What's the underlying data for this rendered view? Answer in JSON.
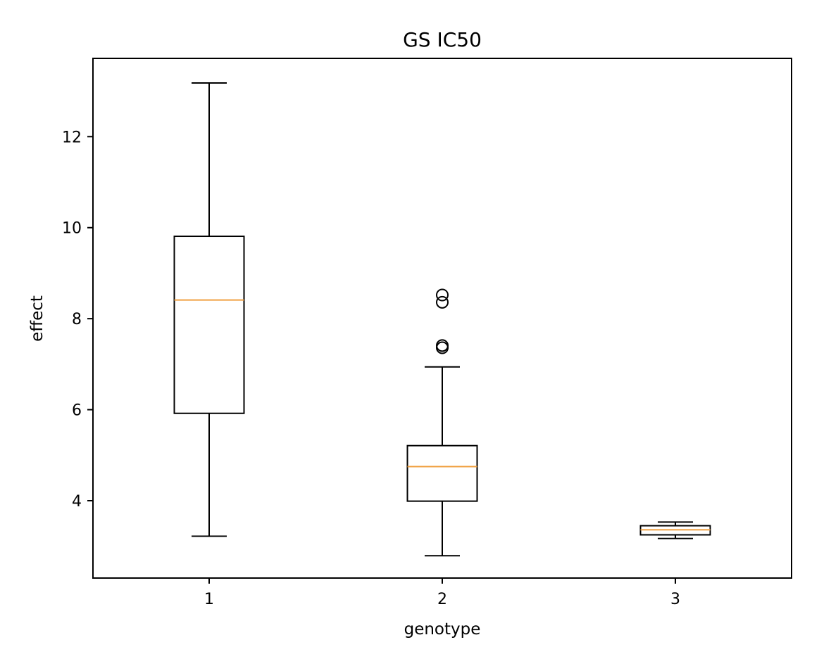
{
  "chart_data": {
    "type": "boxplot",
    "title": "GS IC50",
    "xlabel": "genotype",
    "ylabel": "effect",
    "categories": [
      "1",
      "2",
      "3"
    ],
    "ylim": [
      2.3,
      13.72
    ],
    "yticks": [
      4,
      6,
      8,
      10,
      12
    ],
    "grid": false,
    "boxes": [
      {
        "category": "1",
        "whisker_low": 3.22,
        "q1": 5.92,
        "median": 8.41,
        "q3": 9.81,
        "whisker_high": 13.18,
        "outliers": []
      },
      {
        "category": "2",
        "whisker_low": 2.79,
        "q1": 3.99,
        "median": 4.75,
        "q3": 5.21,
        "whisker_high": 6.94,
        "outliers": [
          7.36,
          7.41,
          8.36,
          8.52
        ]
      },
      {
        "category": "3",
        "whisker_low": 3.17,
        "q1": 3.25,
        "median": 3.36,
        "q3": 3.45,
        "whisker_high": 3.53,
        "outliers": []
      }
    ],
    "colors": {
      "box": "#000000",
      "median": "#f0a040"
    }
  }
}
